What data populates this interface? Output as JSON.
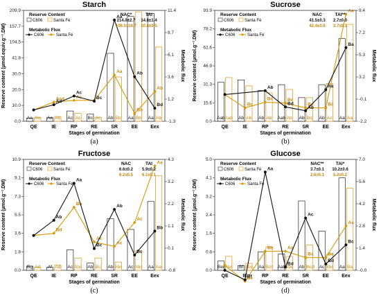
{
  "colors": {
    "c606": "#111111",
    "santafe": "#d99a00",
    "santafe_text": "#c8860a",
    "bar_c606": "#ffffff",
    "bar_santafe_edge": "#e0a030"
  },
  "chart_data": [
    {
      "type": "bar",
      "panel_label": "(a)",
      "title": "Starch",
      "xlabel": "Stages of germination",
      "ylabel": "Reserve content (µmol.equiv.g⁻¹.DM)",
      "ylabel_right": "Metabolic flux",
      "categories": [
        "QE",
        "IE",
        "RP",
        "RE",
        "SR",
        "EE",
        "Eex"
      ],
      "y_ticks": [
        "0.0",
        "10.0",
        "20.0",
        "30.0",
        "41.8",
        "104.5",
        "157.7",
        "209.9"
      ],
      "y_right_ticks": [
        "-1.3",
        "1.2",
        "3.6",
        "6.1",
        "8.7",
        "11.4"
      ],
      "legend_bar_title": "Reserve Content",
      "legend_line_title": "Metabolic Flux",
      "series_names": [
        "C606",
        "Santa Fé"
      ],
      "stats": [
        {
          "label": "NAC*",
          "c606": "214.0±2.7",
          "santafe": "106.0±16.7"
        },
        {
          "label": "TAI",
          "c606": "14.8±1.4",
          "santafe": "10.8±0.5"
        }
      ],
      "bars": {
        "c606": [
          2.0,
          2.3,
          6.5,
          4.5,
          60.0,
          190.0,
          200.0
        ],
        "santafe": [
          2.5,
          3.0,
          5.0,
          2.5,
          28.0,
          205.0,
          85.0
        ]
      },
      "bar_labels": {
        "c606": [
          "Ae",
          "Ae",
          "Ac",
          "Bc",
          "Ab",
          "Aa",
          "Aa"
        ],
        "santafe": [
          "Ae",
          "Ae",
          "Ac",
          "Ac",
          "Bb",
          "Bb",
          "Ab"
        ]
      },
      "flux": {
        "c606": [
          0.0,
          0.6,
          1.6,
          1.0,
          10.3,
          3.8,
          0.2
        ],
        "santafe": [
          0.0,
          0.9,
          1.1,
          1.1,
          4.0,
          -0.4,
          2.1
        ]
      },
      "flux_labels": {
        "c606": [
          "",
          "Ad",
          "Ac",
          "Bc",
          "Aa",
          "Ab",
          "Bd"
        ],
        "santafe": [
          "",
          "Acd",
          "Ac",
          "",
          "Aa",
          "Bb",
          "Ab"
        ]
      }
    },
    {
      "type": "bar",
      "panel_label": "(b)",
      "title": "Sucrose",
      "xlabel": "Stages of germination",
      "ylabel": "Reserve content (µmol.g⁻¹.DM)",
      "ylabel_right": "Metabolic flux",
      "categories": [
        "QE",
        "IE",
        "RP",
        "RE",
        "SR",
        "EE",
        "Eex"
      ],
      "y_ticks": [
        "0.0",
        "15.6",
        "31.3",
        "46.9",
        "62.6",
        "78.2",
        "93.9"
      ],
      "y_right_ticks": [
        "-2.2",
        "-0.1",
        "3.2",
        "5.3",
        "7.2",
        "9.4"
      ],
      "legend_bar_title": "Reserve Content",
      "legend_line_title": "Metabolic Flux",
      "series_names": [
        "C606",
        "Santa Fé"
      ],
      "stats": [
        {
          "label": "NAC",
          "c606": "41.5±0.3",
          "santafe": "42.4±0.6"
        },
        {
          "label": "TAI**",
          "c606": "2.7±0.0",
          "santafe": "3.7±0.1"
        }
      ],
      "bars": {
        "c606": [
          33.0,
          35.0,
          26.0,
          31.0,
          20.0,
          31.0,
          70.0
        ],
        "santafe": [
          37.0,
          30.0,
          24.0,
          27.0,
          20.0,
          32.0,
          82.0
        ]
      },
      "bar_labels": {
        "c606": [
          "Aab",
          "Ab",
          "Ab",
          "Aab",
          "Ab",
          "Ab",
          "Aa"
        ],
        "santafe": [
          "Aab",
          "Ab",
          "Ab",
          "Ab",
          "Bd",
          "Ac",
          "Aa"
        ]
      },
      "flux": {
        "c606": [
          0.6,
          null,
          1.0,
          -0.7,
          -1.1,
          1.1,
          5.5
        ],
        "santafe": [
          0.6,
          -0.8,
          -0.2,
          -0.3,
          -0.8,
          -0.8,
          9.0
        ]
      },
      "flux_labels": {
        "c606": [
          "",
          "Ab",
          "Ab",
          "Bd",
          "Ab",
          "Ak",
          "Ba"
        ],
        "santafe": [
          "",
          "Bc",
          "Bc",
          "Bc",
          "Bc",
          "Bc",
          "Aa"
        ]
      }
    },
    {
      "type": "bar",
      "panel_label": "(c)",
      "title": "Fructose",
      "xlabel": "Stages of germination",
      "ylabel": "Reserve content (µmol.g⁻¹.DM)",
      "ylabel_right": "Metabolic flux",
      "categories": [
        "QE",
        "IE",
        "RP",
        "RE",
        "SR",
        "EE",
        "Eex"
      ],
      "y_ticks": [
        "0.0",
        "1.8",
        "3.6",
        "5.5",
        "7.3",
        "9.1",
        "10.9"
      ],
      "y_right_ticks": [
        "-0.8",
        "0.1",
        "1.1",
        "2.2",
        "3.2",
        "4.3"
      ],
      "legend_bar_title": "Reserve Content",
      "legend_line_title": "Metabolic Flux",
      "series_names": [
        "C606",
        "Santa Fé"
      ],
      "stats": [
        {
          "label": "NAC",
          "c606": "6.6±0.2",
          "santafe": "6.2±0.5"
        },
        {
          "label": "TAI",
          "c606": "5.9±0.2",
          "santafe": "6.1±0.1"
        }
      ],
      "bars": {
        "c606": [
          0.4,
          0.3,
          2.0,
          0.7,
          5.1,
          4.0,
          6.8
        ],
        "santafe": [
          0.3,
          0.5,
          1.2,
          1.2,
          0.8,
          1.9,
          9.3
        ]
      },
      "bar_labels": {
        "c606": [
          "Bg",
          "Af",
          "Ac",
          "Ab",
          "Ab",
          "Ac",
          "Aa"
        ],
        "santafe": [
          "Ad",
          "Ad",
          "Abc",
          "Bc",
          "Abc",
          "Abc",
          "Aa"
        ]
      },
      "flux": {
        "c606": [
          0.8,
          1.5,
          3.2,
          0.2,
          2.0,
          -0.1,
          1.0
        ],
        "santafe": [
          0.8,
          0.9,
          2.1,
          0.5,
          0.3,
          1.4,
          4.0
        ]
      },
      "flux_labels": {
        "c606": [
          "",
          "Ab",
          "Aa",
          "Bc",
          "Ab",
          "Bc",
          "Bb"
        ],
        "santafe": [
          "",
          "Bd",
          "Bb",
          "Ac",
          "Ac",
          "Ac",
          "Aa"
        ]
      }
    },
    {
      "type": "bar",
      "panel_label": "(d)",
      "title": "Glucose",
      "xlabel": "Stages of germination",
      "ylabel": "Reserve content (µmol.g⁻¹.DM)",
      "ylabel_right": "Metabolic flux",
      "categories": [
        "QE",
        "IE",
        "RP",
        "RE",
        "SR",
        "EE",
        "Eex"
      ],
      "y_ticks": [
        "0.0",
        "0.8",
        "1.6",
        "2.4",
        "3.2",
        "4.1",
        "5.0"
      ],
      "y_right_ticks": [
        "-0.0",
        "1.4",
        "2.8",
        "4.2",
        "5.6",
        "7.0"
      ],
      "legend_bar_title": "Reserve Content",
      "legend_line_title": "Metabolic Flux",
      "series_names": [
        "C606",
        "Santa Fé"
      ],
      "stats": [
        {
          "label": "NAC**",
          "c606": "3.7±0.1",
          "santafe": "2.6±0.1"
        },
        {
          "label": "TAI*",
          "c606": "10.2±0.6",
          "santafe": "5.2±0.2"
        }
      ],
      "bars": {
        "c606": [
          0.4,
          0.2,
          0.8,
          0.7,
          3.0,
          1.7,
          4.1
        ],
        "santafe": [
          0.6,
          0.3,
          1.0,
          0.6,
          1.1,
          0.7,
          3.6
        ]
      },
      "bar_labels": {
        "c606": [
          "Bef",
          "Bf",
          "Aa",
          "Aab",
          "Ab",
          "Ac",
          "Aa"
        ],
        "santafe": [
          "Abc",
          "Abc",
          "Bcd",
          "Abc",
          "Bbcd",
          "Bbc",
          "Ba"
        ]
      },
      "flux": {
        "c606": [
          0.0,
          -0.6,
          6.2,
          0.2,
          3.3,
          0.4,
          1.6
        ],
        "santafe": [
          0.3,
          -0.7,
          1.2,
          1.2,
          0.8,
          0.8,
          2.8
        ]
      },
      "flux_labels": {
        "c606": [
          "",
          "Bf",
          "Aa",
          "Bd",
          "Ac",
          "Bd",
          "Bc"
        ],
        "santafe": [
          "",
          "Be",
          "Bb",
          "Aa",
          "Ba",
          "Ba",
          "Aa"
        ]
      }
    }
  ]
}
